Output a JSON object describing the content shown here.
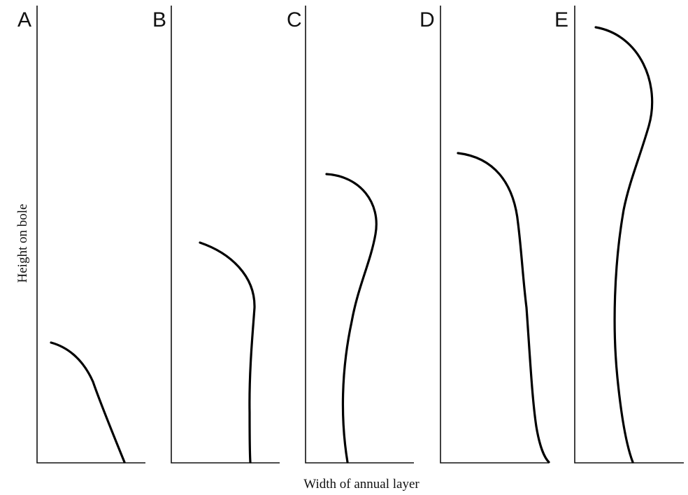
{
  "figure": {
    "y_axis_label": "Height on bole",
    "x_axis_label": "Width of annual layer",
    "panels": [
      {
        "letter": "A"
      },
      {
        "letter": "B"
      },
      {
        "letter": "C"
      },
      {
        "letter": "D"
      },
      {
        "letter": "E"
      }
    ]
  }
}
